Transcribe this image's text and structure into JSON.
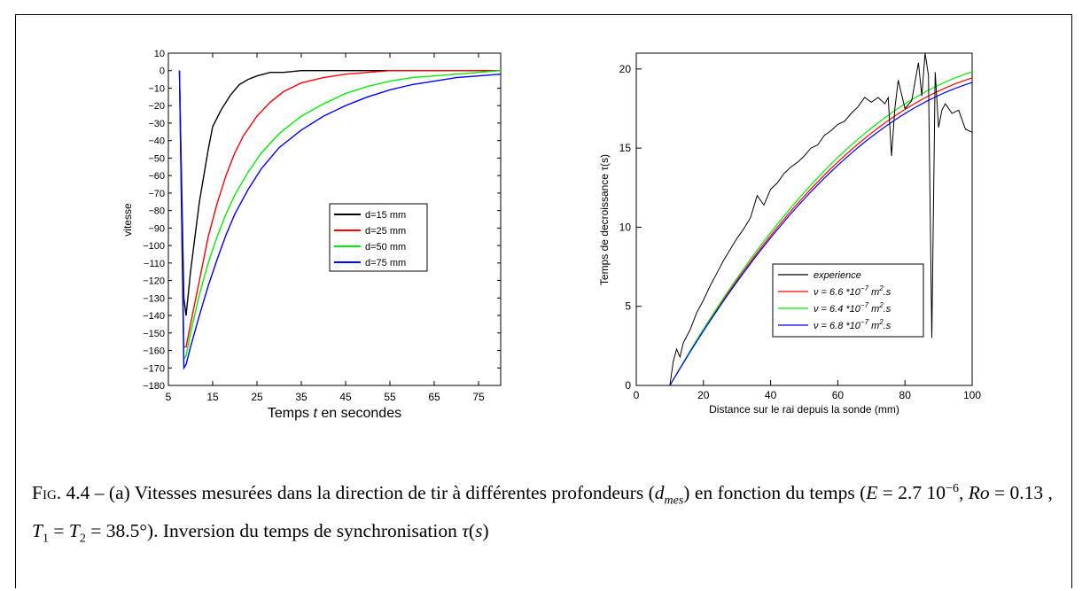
{
  "chart_data": [
    {
      "type": "line",
      "xlabel_parts": [
        "Temps ",
        "t",
        " en secondes"
      ],
      "ylabel": "vitesse",
      "xlim": [
        5,
        80
      ],
      "ylim": [
        -180,
        10
      ],
      "xticks": [
        5,
        15,
        25,
        35,
        45,
        55,
        65,
        75
      ],
      "yticks": [
        10,
        0,
        -10,
        -20,
        -30,
        -40,
        -50,
        -60,
        -70,
        -80,
        -90,
        -100,
        -110,
        -120,
        -130,
        -140,
        -150,
        -160,
        -170,
        -180
      ],
      "legend_position": "center-right",
      "series": [
        {
          "name": "d=15 mm",
          "color": "#000000",
          "x": [
            7.5,
            8.5,
            9,
            10,
            11,
            12,
            13,
            14,
            15,
            17,
            19,
            21,
            23,
            25,
            28,
            31,
            35,
            40,
            45,
            50,
            55,
            60,
            70,
            80
          ],
          "y": [
            0,
            -130,
            -140,
            -115,
            -95,
            -75,
            -60,
            -45,
            -32,
            -22,
            -14,
            -8,
            -5,
            -3,
            -1,
            -1,
            0,
            0,
            0,
            0,
            0,
            0,
            0,
            0
          ]
        },
        {
          "name": "d=25 mm",
          "color": "#ff0000",
          "x": [
            7.5,
            8.5,
            9,
            10,
            12,
            14,
            16,
            18,
            20,
            22,
            25,
            28,
            31,
            35,
            40,
            45,
            50,
            55,
            60,
            65,
            70,
            80
          ],
          "y": [
            0,
            -158,
            -158,
            -145,
            -120,
            -95,
            -76,
            -60,
            -47,
            -37,
            -26,
            -18,
            -12,
            -7,
            -4,
            -2,
            -1,
            0,
            0,
            0,
            0,
            0
          ]
        },
        {
          "name": "d=50 mm",
          "color": "#00ee00",
          "x": [
            7.5,
            8.5,
            9,
            10,
            12,
            14,
            16,
            18,
            20,
            23,
            26,
            30,
            35,
            40,
            45,
            50,
            55,
            60,
            65,
            70,
            75,
            80
          ],
          "y": [
            0,
            -165,
            -163,
            -150,
            -128,
            -110,
            -95,
            -82,
            -71,
            -58,
            -47,
            -36,
            -26,
            -19,
            -13,
            -9,
            -6,
            -4,
            -3,
            -2,
            -1,
            0
          ]
        },
        {
          "name": "d=75 mm",
          "color": "#0000ff",
          "x": [
            7.5,
            8.5,
            9,
            10,
            12,
            14,
            16,
            18,
            20,
            23,
            26,
            30,
            35,
            40,
            45,
            50,
            55,
            60,
            65,
            70,
            75,
            80
          ],
          "y": [
            0,
            -170,
            -168,
            -158,
            -140,
            -123,
            -108,
            -94,
            -82,
            -68,
            -56,
            -44,
            -34,
            -26,
            -20,
            -15,
            -11,
            -8,
            -6,
            -4,
            -3,
            -2
          ]
        }
      ]
    },
    {
      "type": "line",
      "xlabel": "Distance sur le rai depuis la sonde (mm)",
      "ylabel": "Temps de decroissance  τ(s)",
      "xlim": [
        0,
        100
      ],
      "ylim": [
        0,
        21
      ],
      "xticks": [
        0,
        20,
        40,
        60,
        80,
        100
      ],
      "yticks": [
        0,
        5,
        10,
        15,
        20
      ],
      "legend_position": "lower-right",
      "series": [
        {
          "name": "experience",
          "color": "#000000",
          "x": [
            10,
            11,
            12,
            13,
            14,
            16,
            18,
            20,
            22,
            24,
            26,
            28,
            30,
            32,
            34,
            36,
            38,
            40,
            42,
            44,
            46,
            48,
            50,
            52,
            54,
            56,
            58,
            60,
            62,
            64,
            66,
            68,
            70,
            72,
            74,
            75,
            76,
            77,
            78,
            80,
            82,
            84,
            85,
            86,
            87,
            88,
            89,
            90,
            91,
            92,
            94,
            96,
            98,
            100
          ],
          "y": [
            0,
            1.5,
            2.3,
            1.8,
            2.7,
            3.5,
            4.6,
            5.4,
            6.3,
            7.1,
            7.9,
            8.6,
            9.3,
            9.9,
            10.6,
            12.0,
            11.4,
            12.4,
            12.8,
            13.4,
            13.8,
            14.1,
            14.5,
            15.0,
            15.2,
            15.8,
            16.1,
            16.5,
            16.7,
            17.2,
            17.6,
            18.2,
            17.9,
            18.2,
            17.8,
            18.2,
            14.5,
            17.5,
            19.3,
            17.5,
            18.0,
            20.4,
            18.3,
            21.0,
            19.6,
            3.0,
            19.8,
            16.3,
            17.4,
            17.8,
            17.2,
            17.4,
            16.2,
            16.0
          ]
        },
        {
          "name": "ν = 6.6 *10^-7 m^2.s",
          "color": "#ff0000",
          "tau_max": 20.1
        },
        {
          "name": "ν = 6.4 *10^-7 m^2.s",
          "color": "#00ee00",
          "tau_max": 20.5
        },
        {
          "name": "ν = 6.8 *10^-7 m^2.s",
          "color": "#0000ff",
          "tau_max": 19.8
        }
      ]
    }
  ],
  "caption": {
    "label": "Fig.",
    "number": "4.4",
    "dash": " – ",
    "part1": "(a) Vitesses mesurées dans la direction de tir à différentes profondeurs (",
    "d_sym": "d",
    "d_sub": "mes",
    "part2": ") en fonction du temps (",
    "E_sym": "E",
    "E_val": " = 2.7 10",
    "E_exp": "−6",
    "sep1": ", ",
    "Ro_sym": "Ro",
    "Ro_val": " = 0.13 , ",
    "T1_sym": "T",
    "T1_sub": "1",
    "eq": " = ",
    "T2_sym": "T",
    "T2_sub": "2",
    "T_val": " = 38.5°). Inversion du temps de synchronisation ",
    "tau_sym": "τ",
    "tau_arg": "(",
    "s_sym": "s",
    "tau_close": ")"
  }
}
